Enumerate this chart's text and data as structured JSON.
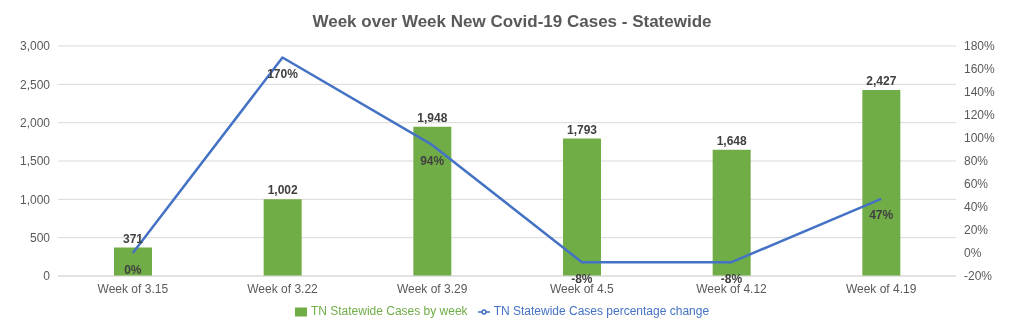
{
  "chart_data": {
    "type": "bar",
    "title": "Week over Week New Covid-19 Cases - Statewide",
    "categories": [
      "Week of 3.15",
      "Week of 3.22",
      "Week of 3.29",
      "Week of 4.5",
      "Week of 4.12",
      "Week of 4.19"
    ],
    "series": [
      {
        "name": "TN Statewide Cases by week",
        "color": "#70ad47",
        "values": [
          371,
          1002,
          1948,
          1793,
          1648,
          2427
        ],
        "value_labels": [
          "371",
          "1,002",
          "1,948",
          "1,793",
          "1,648",
          "2,427"
        ]
      },
      {
        "type": "line",
        "axis": "y2",
        "name": "TN Statewide Cases percentage change",
        "color": "#4472c4",
        "values": [
          0,
          170,
          94,
          -8,
          -8,
          47
        ],
        "value_labels": [
          "0%",
          "170%",
          "94%",
          "-8%",
          "-8%",
          "47%"
        ]
      }
    ],
    "ylim": [
      0,
      3000
    ],
    "yticks": [
      0,
      {
        "value": 500,
        "label": "500"
      },
      {
        "value": 1000,
        "label": "1,000"
      },
      {
        "value": 1500,
        "label": "1,500"
      },
      {
        "value": 2000,
        "label": "2,000"
      },
      {
        "value": 2500,
        "label": "2,500"
      },
      {
        "value": 3000,
        "label": "3,000"
      }
    ],
    "y2lim": [
      -20,
      180
    ],
    "y2ticks": [
      {
        "value": -20,
        "label": "-20%"
      },
      {
        "value": 0,
        "label": "0%"
      },
      {
        "value": 20,
        "label": "20%"
      },
      {
        "value": 40,
        "label": "40%"
      },
      {
        "value": 60,
        "label": "60%"
      },
      {
        "value": 80,
        "label": "80%"
      },
      {
        "value": 100,
        "label": "100%"
      },
      {
        "value": 120,
        "label": "120%"
      },
      {
        "value": 140,
        "label": "140%"
      },
      {
        "value": 160,
        "label": "160%"
      },
      {
        "value": 180,
        "label": "180%"
      }
    ],
    "grid": "y",
    "legend": "bottom",
    "marker": "none",
    "line_style": "solid"
  }
}
